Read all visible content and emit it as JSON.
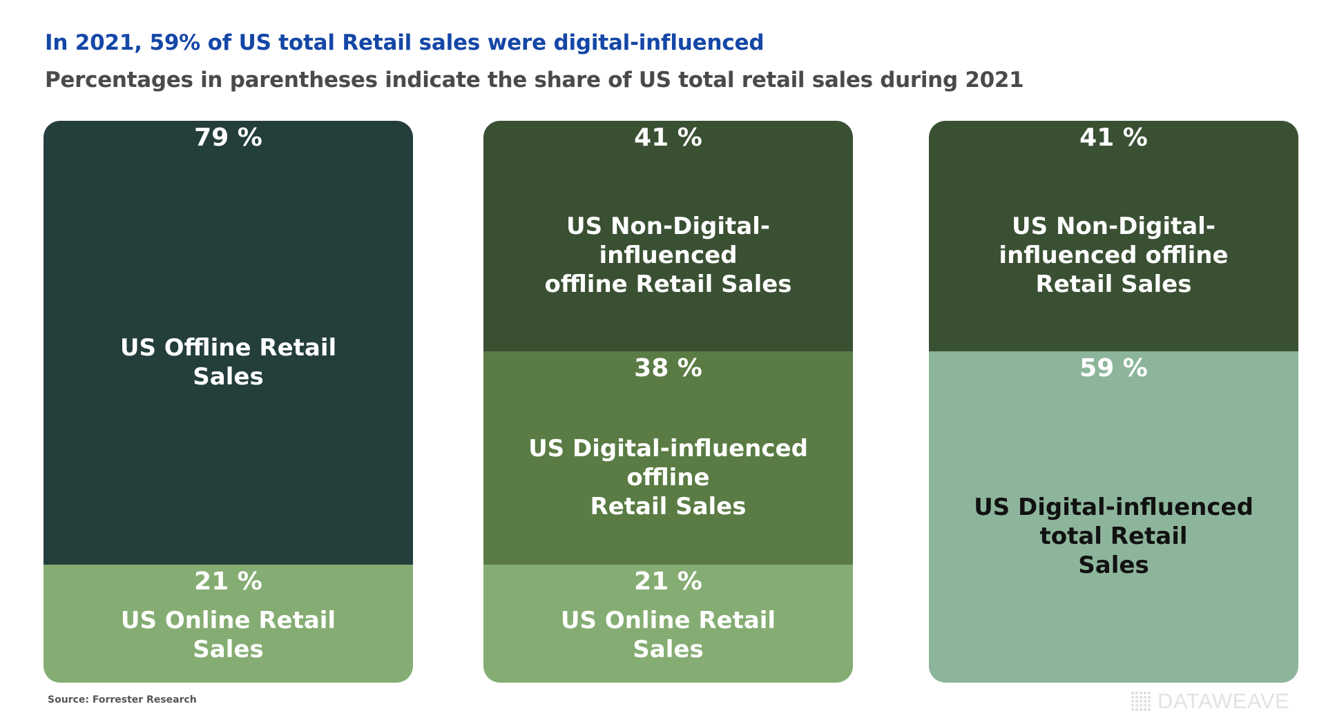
{
  "title": "In 2021, 59% of US total Retail sales were digital-influenced",
  "subtitle": "Percentages in parentheses indicate the share of US total retail sales during 2021",
  "source": "Source: Forrester Research",
  "brand": "DATAWEAVE",
  "colors": {
    "title": "#1447a6",
    "offline_total": "#243e3b",
    "online": "#85ad73",
    "non_digital": "#3a5033",
    "digital_offline": "#5a7c44",
    "digital_total": "#8db59b"
  },
  "chart_data": {
    "type": "bar",
    "stacked": true,
    "unit": "%",
    "columns": [
      {
        "segments": [
          {
            "label": "US Offline Retail\nSales",
            "percent_label": "79 %",
            "value": 79,
            "color": "#243e3b",
            "label_color": "#ffffff"
          },
          {
            "label": "US Online Retail\nSales",
            "percent_label": "21 %",
            "value": 21,
            "color": "#85ad73",
            "label_color": "#ffffff"
          }
        ]
      },
      {
        "segments": [
          {
            "label": "US Non-Digital-\ninfluenced\noffline Retail Sales",
            "percent_label": "41 %",
            "value": 41,
            "color": "#3a5033",
            "label_color": "#ffffff"
          },
          {
            "label": "US Digital-influenced\noffline\nRetail Sales",
            "percent_label": "38 %",
            "value": 38,
            "color": "#5a7c44",
            "label_color": "#ffffff"
          },
          {
            "label": "US Online Retail\nSales",
            "percent_label": "21 %",
            "value": 21,
            "color": "#85ad73",
            "label_color": "#ffffff"
          }
        ]
      },
      {
        "segments": [
          {
            "label": "US Non-Digital-\ninfluenced offline\nRetail Sales",
            "percent_label": "41 %",
            "value": 41,
            "color": "#3a5033",
            "label_color": "#ffffff"
          },
          {
            "label": "US Digital-influenced\ntotal Retail\nSales",
            "percent_label": "59 %",
            "value": 59,
            "color": "#8db59b",
            "label_color": "#111111"
          }
        ]
      }
    ]
  }
}
